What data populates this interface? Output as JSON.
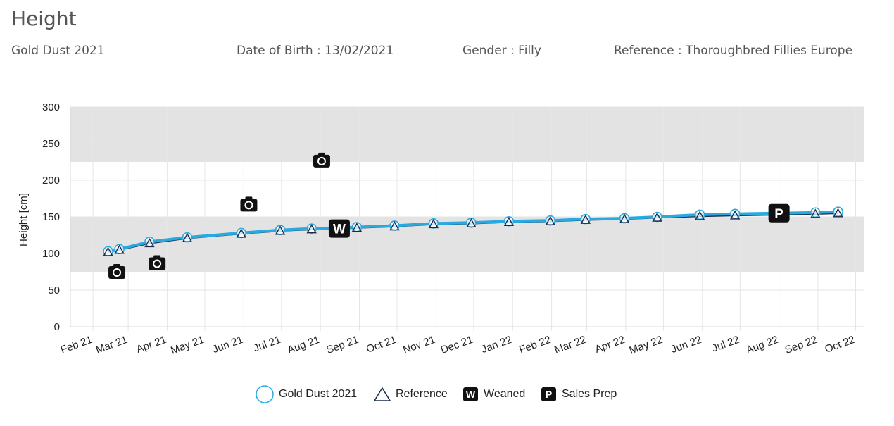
{
  "header": {
    "title": "Height",
    "horse_name": "Gold Dust 2021",
    "dob": "Date of Birth : 13/02/2021",
    "gender": "Gender : Filly",
    "reference": "Reference : Thoroughbred Fillies Europe"
  },
  "legend": {
    "horse": "Gold Dust 2021",
    "reference": "Reference",
    "weaned": "Weaned",
    "sales_prep": "Sales Prep",
    "weaned_glyph": "W",
    "sales_glyph": "P"
  },
  "colors": {
    "horse_line": "#29a9e0",
    "reference_line": "#1a2a4a",
    "band": "#e3e3e3",
    "marker": "#111111"
  },
  "chart_data": {
    "type": "line",
    "ylabel": "Height [cm]",
    "xlabel": "",
    "ylim": [
      0,
      300
    ],
    "yticks": [
      0,
      50,
      100,
      150,
      200,
      250,
      300
    ],
    "grid": true,
    "legend_position": "bottom",
    "x_range": [
      "2021-01-14",
      "2022-10-08"
    ],
    "x_ticks": [
      {
        "date": "2021-02-01",
        "label": "Feb 21"
      },
      {
        "date": "2021-03-01",
        "label": "Mar 21"
      },
      {
        "date": "2021-04-01",
        "label": "Apr 21"
      },
      {
        "date": "2021-05-01",
        "label": "May 21"
      },
      {
        "date": "2021-06-01",
        "label": "Jun 21"
      },
      {
        "date": "2021-07-01",
        "label": "Jul 21"
      },
      {
        "date": "2021-08-01",
        "label": "Aug 21"
      },
      {
        "date": "2021-09-01",
        "label": "Sep 21"
      },
      {
        "date": "2021-10-01",
        "label": "Oct 21"
      },
      {
        "date": "2021-11-01",
        "label": "Nov 21"
      },
      {
        "date": "2021-12-01",
        "label": "Dec 21"
      },
      {
        "date": "2022-01-01",
        "label": "Jan 22"
      },
      {
        "date": "2022-02-01",
        "label": "Feb 22"
      },
      {
        "date": "2022-03-01",
        "label": "Mar 22"
      },
      {
        "date": "2022-04-01",
        "label": "Apr 22"
      },
      {
        "date": "2022-05-01",
        "label": "May 22"
      },
      {
        "date": "2022-06-01",
        "label": "Jun 22"
      },
      {
        "date": "2022-07-01",
        "label": "Jul 22"
      },
      {
        "date": "2022-08-01",
        "label": "Aug 22"
      },
      {
        "date": "2022-09-01",
        "label": "Sep 22"
      },
      {
        "date": "2022-10-01",
        "label": "Oct 22"
      }
    ],
    "bands": [
      {
        "from": 225,
        "to": 300
      },
      {
        "from": 75,
        "to": 150
      }
    ],
    "series": [
      {
        "name": "Gold Dust 2021",
        "marker": "circle",
        "points": [
          {
            "x": "2021-02-13",
            "y": 103
          },
          {
            "x": "2021-02-22",
            "y": 106
          },
          {
            "x": "2021-03-18",
            "y": 116
          },
          {
            "x": "2021-04-17",
            "y": 122
          },
          {
            "x": "2021-05-30",
            "y": 128
          },
          {
            "x": "2021-06-30",
            "y": 132
          },
          {
            "x": "2021-07-25",
            "y": 134
          },
          {
            "x": "2021-08-30",
            "y": 136
          },
          {
            "x": "2021-09-29",
            "y": 138
          },
          {
            "x": "2021-10-30",
            "y": 141
          },
          {
            "x": "2021-11-29",
            "y": 142
          },
          {
            "x": "2021-12-29",
            "y": 144
          },
          {
            "x": "2022-01-31",
            "y": 145
          },
          {
            "x": "2022-02-28",
            "y": 147
          },
          {
            "x": "2022-03-31",
            "y": 148
          },
          {
            "x": "2022-04-26",
            "y": 150
          },
          {
            "x": "2022-05-30",
            "y": 153
          },
          {
            "x": "2022-06-27",
            "y": 154
          },
          {
            "x": "2022-07-31",
            "y": 155
          },
          {
            "x": "2022-08-30",
            "y": 156
          },
          {
            "x": "2022-09-17",
            "y": 157
          }
        ]
      },
      {
        "name": "Reference",
        "marker": "triangle",
        "points": [
          {
            "x": "2021-02-13",
            "y": 102
          },
          {
            "x": "2021-02-22",
            "y": 105
          },
          {
            "x": "2021-03-18",
            "y": 114
          },
          {
            "x": "2021-04-17",
            "y": 121
          },
          {
            "x": "2021-05-30",
            "y": 127
          },
          {
            "x": "2021-06-30",
            "y": 131
          },
          {
            "x": "2021-07-25",
            "y": 133
          },
          {
            "x": "2021-08-30",
            "y": 135
          },
          {
            "x": "2021-09-29",
            "y": 137
          },
          {
            "x": "2021-10-30",
            "y": 140
          },
          {
            "x": "2021-11-29",
            "y": 141
          },
          {
            "x": "2021-12-29",
            "y": 143
          },
          {
            "x": "2022-01-31",
            "y": 144
          },
          {
            "x": "2022-02-28",
            "y": 146
          },
          {
            "x": "2022-03-31",
            "y": 147
          },
          {
            "x": "2022-04-26",
            "y": 149
          },
          {
            "x": "2022-05-30",
            "y": 151
          },
          {
            "x": "2022-06-27",
            "y": 152
          },
          {
            "x": "2022-07-31",
            "y": 153
          },
          {
            "x": "2022-08-30",
            "y": 154
          },
          {
            "x": "2022-09-17",
            "y": 155
          }
        ]
      }
    ],
    "photo_markers": [
      {
        "x": "2021-02-20",
        "y": 75
      },
      {
        "x": "2021-03-24",
        "y": 87
      },
      {
        "x": "2021-06-05",
        "y": 167
      },
      {
        "x": "2021-08-02",
        "y": 227
      }
    ],
    "events": [
      {
        "type": "weaned",
        "x": "2021-08-16",
        "y": 134
      },
      {
        "type": "sales_prep",
        "x": "2022-08-01",
        "y": 155
      }
    ]
  }
}
